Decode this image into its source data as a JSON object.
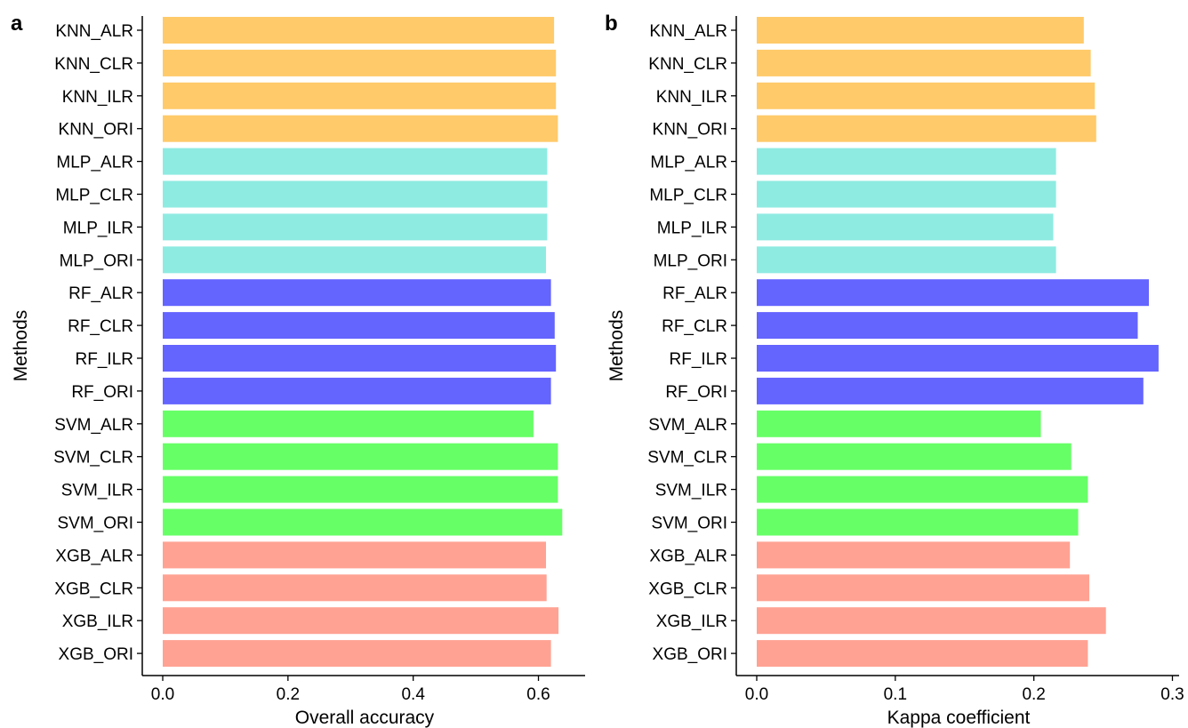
{
  "chart_data": [
    {
      "type": "bar",
      "orientation": "horizontal",
      "panel_label": "a",
      "xlabel": "Overall accuracy",
      "ylabel": "Methods",
      "xlim": [
        0,
        0.65
      ],
      "xticks": [
        "0.0",
        "0.2",
        "0.4",
        "0.6"
      ],
      "grid": false,
      "categories": [
        "KNN_ALR",
        "KNN_CLR",
        "KNN_ILR",
        "KNN_ORI",
        "MLP_ALR",
        "MLP_CLR",
        "MLP_ILR",
        "MLP_ORI",
        "RF_ALR",
        "RF_CLR",
        "RF_ILR",
        "RF_ORI",
        "SVM_ALR",
        "SVM_CLR",
        "SVM_ILR",
        "SVM_ORI",
        "XGB_ALR",
        "XGB_CLR",
        "XGB_ILR",
        "XGB_ORI"
      ],
      "values": [
        0.625,
        0.628,
        0.628,
        0.631,
        0.614,
        0.614,
        0.614,
        0.612,
        0.62,
        0.626,
        0.628,
        0.62,
        0.592,
        0.631,
        0.631,
        0.638,
        0.612,
        0.613,
        0.632,
        0.62
      ],
      "colors": [
        "#FFCA6A",
        "#FFCA6A",
        "#FFCA6A",
        "#FFCA6A",
        "#8EEBE2",
        "#8EEBE2",
        "#8EEBE2",
        "#8EEBE2",
        "#6464FF",
        "#6464FF",
        "#6464FF",
        "#6464FF",
        "#66FF66",
        "#66FF66",
        "#66FF66",
        "#66FF66",
        "#FFA293",
        "#FFA293",
        "#FFA293",
        "#FFA293"
      ]
    },
    {
      "type": "bar",
      "orientation": "horizontal",
      "panel_label": "b",
      "xlabel": "Kappa coefficient",
      "ylabel": "Methods",
      "xlim": [
        0,
        0.3
      ],
      "xticks": [
        "0.0",
        "0.1",
        "0.2",
        "0.3"
      ],
      "grid": false,
      "categories": [
        "KNN_ALR",
        "KNN_CLR",
        "KNN_ILR",
        "KNN_ORI",
        "MLP_ALR",
        "MLP_CLR",
        "MLP_ILR",
        "MLP_ORI",
        "RF_ALR",
        "RF_CLR",
        "RF_ILR",
        "RF_ORI",
        "SVM_ALR",
        "SVM_CLR",
        "SVM_ILR",
        "SVM_ORI",
        "XGB_ALR",
        "XGB_CLR",
        "XGB_ILR",
        "XGB_ORI"
      ],
      "values": [
        0.236,
        0.241,
        0.244,
        0.245,
        0.216,
        0.216,
        0.214,
        0.216,
        0.283,
        0.275,
        0.29,
        0.279,
        0.205,
        0.227,
        0.239,
        0.232,
        0.226,
        0.24,
        0.252,
        0.239
      ],
      "colors": [
        "#FFCA6A",
        "#FFCA6A",
        "#FFCA6A",
        "#FFCA6A",
        "#8EEBE2",
        "#8EEBE2",
        "#8EEBE2",
        "#8EEBE2",
        "#6464FF",
        "#6464FF",
        "#6464FF",
        "#6464FF",
        "#66FF66",
        "#66FF66",
        "#66FF66",
        "#66FF66",
        "#FFA293",
        "#FFA293",
        "#FFA293",
        "#FFA293"
      ]
    }
  ]
}
